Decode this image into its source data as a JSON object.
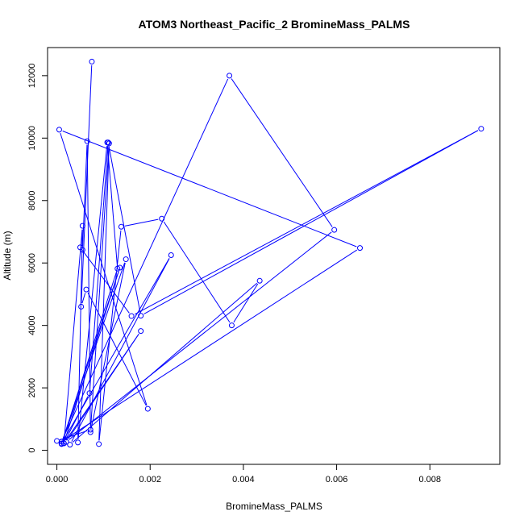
{
  "chart_data": {
    "type": "line",
    "title": "ATOM3 Northeast_Pacific_2 BromineMass_PALMS",
    "xlabel": "BromineMass_PALMS",
    "ylabel": "Altitude (m)",
    "xlim": [
      -0.0002,
      0.0095
    ],
    "ylim": [
      -450,
      12900
    ],
    "x_ticks": [
      0.0,
      0.002,
      0.004,
      0.006,
      0.008
    ],
    "x_tick_labels": [
      "0.000",
      "0.002",
      "0.004",
      "0.006",
      "0.008"
    ],
    "y_ticks": [
      0,
      2000,
      4000,
      6000,
      8000,
      10000,
      12000
    ],
    "y_tick_labels": [
      "0",
      "2000",
      "4000",
      "6000",
      "8000",
      "10000",
      "12000"
    ],
    "grid": false,
    "line_color": "#0000ff",
    "series": [
      {
        "points": [
          [
            0.00075,
            12450
          ],
          [
            0.00052,
            4600
          ],
          [
            0.00063,
            5150
          ],
          [
            0.00195,
            1330
          ],
          [
            5e-05,
            10270
          ],
          [
            0.0065,
            6480
          ],
          [
            0.0001,
            280
          ],
          [
            0.0037,
            12000
          ],
          [
            0.00595,
            7060
          ],
          [
            0.0002,
            270
          ],
          [
            0.0018,
            3820
          ],
          [
            0.00015,
            220
          ],
          [
            0.00055,
            7190
          ],
          [
            0.00045,
            250
          ],
          [
            0.00108,
            9860
          ],
          [
            0.0013,
            5820
          ],
          [
            0.0001,
            200
          ],
          [
            0.00148,
            6120
          ],
          [
            0.00072,
            580
          ],
          [
            0.00112,
            9830
          ],
          [
            0.0009,
            200
          ],
          [
            0.00138,
            7160
          ],
          [
            0.00225,
            7420
          ],
          [
            0.00375,
            4000
          ],
          [
            0.00435,
            5430
          ],
          [
            0.00028,
            180
          ],
          [
            0.00245,
            6250
          ],
          [
            0.0001,
            220
          ],
          [
            0.00135,
            5850
          ],
          [
            0.00015,
            230
          ],
          [
            0.0007,
            1830
          ],
          [
            0.0011,
            9860
          ],
          [
            0.0018,
            4310
          ],
          [
            0.0091,
            10300
          ],
          [
            0.0016,
            4300
          ],
          [
            0.0005,
            6500
          ],
          [
            0.00055,
            6420
          ],
          [
            0.00065,
            9900
          ],
          [
            0.00072,
            660
          ],
          [
            0.0,
            300
          ]
        ]
      }
    ]
  }
}
